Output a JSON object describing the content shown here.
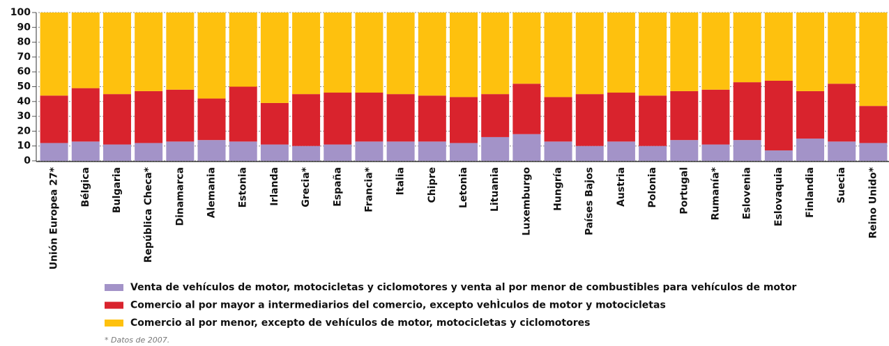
{
  "chart_data": {
    "type": "stacked_bar",
    "categories": [
      "Unión Europea 27*",
      "Bélgica",
      "Bulgaria",
      "República Checa*",
      "Dinamarca",
      "Alemania",
      "Estonia",
      "Irlanda",
      "Grecia*",
      "España",
      "Francia*",
      "Italia",
      "Chipre",
      "Letonia",
      "Lituania",
      "Luxemburgo",
      "Hungría",
      "Países Bajos",
      "Austria",
      "Polonia",
      "Portugal",
      "Rumanía*",
      "Eslovenia",
      "Eslovaquia",
      "Finlandia",
      "Suecia",
      "Reino Unido*"
    ],
    "series": [
      {
        "name": "Venta de vehículos de motor, motocicletas y ciclomotores y venta al por menor de combustibles para vehículos de motor",
        "color": "#a393c8",
        "values": [
          12,
          13,
          11,
          12,
          13,
          14,
          13,
          11,
          10,
          11,
          13,
          13,
          13,
          12,
          16,
          18,
          13,
          10,
          13,
          10,
          14,
          11,
          14,
          7,
          15,
          13,
          12
        ]
      },
      {
        "name": "Comercio al por mayor a intermediarios del comercio, excepto vehÌculos de motor y motocicletas",
        "color": "#d9232d",
        "values": [
          32,
          36,
          34,
          35,
          35,
          28,
          37,
          28,
          35,
          35,
          33,
          32,
          31,
          31,
          29,
          34,
          30,
          35,
          33,
          34,
          33,
          37,
          39,
          47,
          32,
          39,
          25
        ]
      },
      {
        "name": "Comercio al por menor, excepto de vehículos de motor, motocicletas y ciclomotores",
        "color": "#fec10e",
        "values": [
          56,
          51,
          55,
          53,
          52,
          58,
          50,
          61,
          55,
          54,
          54,
          55,
          56,
          57,
          55,
          48,
          57,
          55,
          54,
          56,
          53,
          52,
          47,
          46,
          53,
          48,
          63
        ]
      }
    ],
    "ylim": [
      0,
      100
    ],
    "yticks": [
      0,
      10,
      20,
      30,
      40,
      50,
      60,
      70,
      80,
      90,
      100
    ],
    "grid": true,
    "footnote": "* Datos de 2007."
  }
}
